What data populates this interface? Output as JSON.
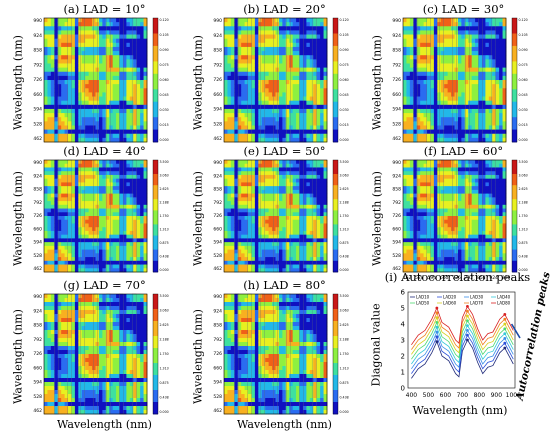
{
  "panels": [
    {
      "title": "(a) LAD = 10°",
      "ylabel": "Wavelength (nm)",
      "xlabel": "",
      "cb": [
        "0.120",
        "0.105",
        "0.090",
        "0.075",
        "0.060",
        "0.045",
        "0.030",
        "0.015",
        "0.000"
      ]
    },
    {
      "title": "(b) LAD = 20°",
      "ylabel": "Wavelength (nm)",
      "xlabel": "",
      "cb": [
        "0.120",
        "0.105",
        "0.090",
        "0.075",
        "0.060",
        "0.045",
        "0.030",
        "0.015",
        "0.000"
      ]
    },
    {
      "title": "(c) LAD = 30°",
      "ylabel": "Wavelength (nm)",
      "xlabel": "",
      "cb": [
        "0.120",
        "0.105",
        "0.090",
        "0.075",
        "0.060",
        "0.045",
        "0.030",
        "0.015",
        "0.000"
      ]
    },
    {
      "title": "(d) LAD = 40°",
      "ylabel": "Wavelength (nm)",
      "xlabel": "",
      "cb": [
        "3.500",
        "3.063",
        "2.625",
        "2.188",
        "1.750",
        "1.313",
        "0.875",
        "0.438",
        "0.000"
      ]
    },
    {
      "title": "(e) LAD = 50°",
      "ylabel": "Wavelength (nm)",
      "xlabel": "",
      "cb": [
        "3.500",
        "3.063",
        "2.625",
        "2.188",
        "1.750",
        "1.313",
        "0.875",
        "0.438",
        "0.000"
      ]
    },
    {
      "title": "(f) LAD = 60°",
      "ylabel": "Wavelength (nm)",
      "xlabel": "",
      "cb": [
        "3.500",
        "3.063",
        "2.625",
        "2.188",
        "1.750",
        "1.313",
        "0.875",
        "0.438",
        "0.000"
      ]
    },
    {
      "title": "(g) LAD = 70°",
      "ylabel": "Wavelength (nm)",
      "xlabel": "Wavelength (nm)",
      "cb": [
        "3.500",
        "3.063",
        "2.625",
        "2.188",
        "1.750",
        "1.313",
        "0.875",
        "0.438",
        "0.000"
      ]
    },
    {
      "title": "(h) LAD = 80°",
      "ylabel": "Wavelength (nm)",
      "xlabel": "Wavelength (nm)",
      "cb": [
        "3.500",
        "3.063",
        "2.625",
        "2.188",
        "1.750",
        "1.313",
        "0.875",
        "0.438",
        "0.000"
      ]
    }
  ],
  "wl_ticks": [
    "990",
    "924",
    "858",
    "792",
    "726",
    "660",
    "594",
    "528",
    "462"
  ],
  "wl_ticks_x": [
    "462",
    "528",
    "594",
    "660",
    "726",
    "792",
    "858",
    "924",
    "990"
  ],
  "heat_colors": [
    "#1010c0",
    "#2a6cf0",
    "#22b8e8",
    "#3ee0a0",
    "#8ef040",
    "#e8f020",
    "#f8b020",
    "#f06018",
    "#c81818"
  ],
  "chart_data": {
    "type": "line",
    "title": "(i) Autocorrelation peaks",
    "xlabel": "Wavelength (nm)",
    "ylabel": "Diagonal value",
    "xlim": [
      380,
      1010
    ],
    "ylim": [
      0,
      6
    ],
    "xticks": [
      400,
      500,
      600,
      700,
      800,
      900,
      1000
    ],
    "yticks": [
      0,
      1,
      2,
      3,
      4,
      5,
      6
    ],
    "annotation": "Autocorrelation peaks",
    "legend": [
      "LAD10",
      "LAD20",
      "LAD30",
      "LAD40",
      "LAD50",
      "LAD60",
      "LAD70",
      "LAD80"
    ],
    "x": [
      400,
      440,
      480,
      520,
      550,
      580,
      620,
      660,
      680,
      700,
      730,
      760,
      790,
      820,
      850,
      880,
      920,
      950,
      980,
      1000
    ],
    "series": [
      {
        "name": "LAD10",
        "color": "#1f2a7a",
        "values": [
          0.6,
          1.2,
          1.5,
          2.2,
          2.9,
          2.0,
          1.7,
          0.9,
          0.7,
          2.3,
          3.0,
          2.5,
          1.6,
          0.9,
          1.3,
          1.4,
          2.2,
          2.5,
          1.9,
          1.5
        ]
      },
      {
        "name": "LAD20",
        "color": "#2b4fd8",
        "values": [
          0.9,
          1.5,
          1.8,
          2.5,
          3.2,
          2.3,
          2.0,
          1.2,
          1.0,
          2.6,
          3.3,
          2.8,
          1.9,
          1.2,
          1.6,
          1.7,
          2.5,
          2.8,
          2.2,
          1.8
        ]
      },
      {
        "name": "LAD30",
        "color": "#3a8ee8",
        "values": [
          1.2,
          1.8,
          2.1,
          2.8,
          3.5,
          2.6,
          2.3,
          1.5,
          1.3,
          2.9,
          3.6,
          3.1,
          2.2,
          1.5,
          1.9,
          2.0,
          2.8,
          3.1,
          2.5,
          2.1
        ]
      },
      {
        "name": "LAD40",
        "color": "#34c8d8",
        "values": [
          1.5,
          2.1,
          2.4,
          3.1,
          3.8,
          2.9,
          2.6,
          1.8,
          1.6,
          3.2,
          3.9,
          3.4,
          2.5,
          1.8,
          2.2,
          2.3,
          3.1,
          3.4,
          2.8,
          2.4
        ]
      },
      {
        "name": "LAD50",
        "color": "#4cd870",
        "values": [
          1.8,
          2.4,
          2.7,
          3.4,
          4.1,
          3.2,
          2.9,
          2.1,
          1.9,
          3.5,
          4.2,
          3.7,
          2.8,
          2.1,
          2.5,
          2.6,
          3.4,
          3.7,
          3.1,
          2.7
        ]
      },
      {
        "name": "LAD60",
        "color": "#d8d020",
        "values": [
          2.1,
          2.7,
          3.0,
          3.7,
          4.4,
          3.5,
          3.2,
          2.4,
          2.2,
          3.8,
          4.5,
          4.0,
          3.1,
          2.4,
          2.8,
          2.9,
          3.7,
          4.0,
          3.4,
          3.0
        ]
      },
      {
        "name": "LAD70",
        "color": "#f08020",
        "values": [
          2.4,
          3.0,
          3.3,
          4.0,
          4.7,
          3.8,
          3.5,
          2.7,
          2.5,
          4.1,
          4.8,
          4.3,
          3.4,
          2.7,
          3.1,
          3.2,
          4.0,
          4.3,
          3.7,
          3.3
        ]
      },
      {
        "name": "LAD80",
        "color": "#d82020",
        "values": [
          2.7,
          3.3,
          3.6,
          4.3,
          5.0,
          4.1,
          3.8,
          3.0,
          2.8,
          4.4,
          5.1,
          4.6,
          3.7,
          3.0,
          3.4,
          3.5,
          4.3,
          4.6,
          4.0,
          3.6
        ]
      }
    ]
  }
}
